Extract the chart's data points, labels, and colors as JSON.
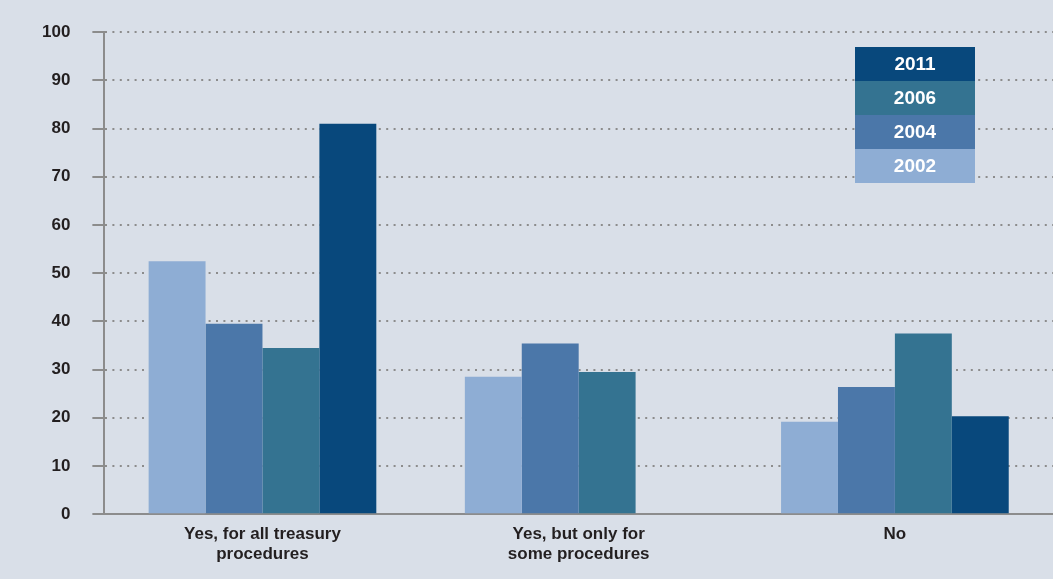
{
  "chart_data": {
    "type": "bar",
    "categories": [
      "Yes, for all treasury procedures",
      "Yes, but only for some procedures",
      "No"
    ],
    "series": [
      {
        "name": "2002",
        "color": "#8eadd4",
        "values": [
          52.5,
          28.5,
          19.2
        ]
      },
      {
        "name": "2004",
        "color": "#4b77a9",
        "values": [
          39.5,
          35.4,
          26.4
        ]
      },
      {
        "name": "2006",
        "color": "#347391",
        "values": [
          34.5,
          29.5,
          37.5
        ]
      },
      {
        "name": "2011",
        "color": "#08487c",
        "values": [
          81,
          null,
          20.3
        ]
      }
    ],
    "ylim": [
      0,
      100
    ],
    "yticks": [
      0,
      10,
      20,
      30,
      40,
      50,
      60,
      70,
      80,
      90,
      100
    ],
    "grid": "y",
    "legend": "top right"
  }
}
